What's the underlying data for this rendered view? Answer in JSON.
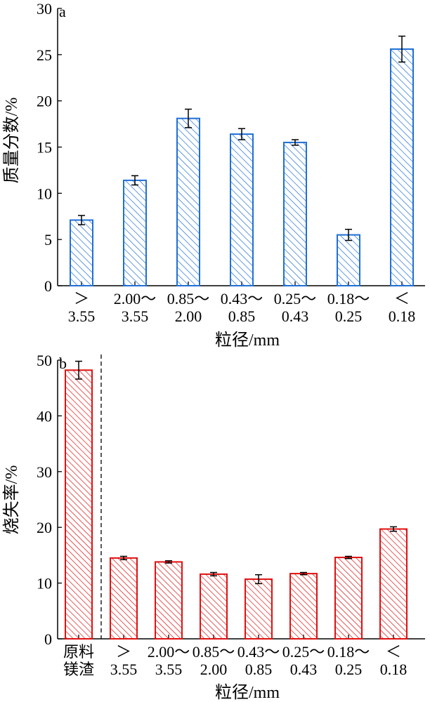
{
  "chart_data": [
    {
      "type": "bar",
      "panel_label": "a",
      "ylabel": "质量分数/%",
      "xlabel": "粒径/mm",
      "ylim": [
        0,
        30
      ],
      "yticks": [
        "0",
        "5",
        "10",
        "15",
        "20",
        "25",
        "30"
      ],
      "categories": [
        [
          "＞",
          "3.55"
        ],
        [
          "2.00～",
          "3.55"
        ],
        [
          "0.85～",
          "2.00"
        ],
        [
          "0.43～",
          "0.85"
        ],
        [
          "0.25～",
          "0.43"
        ],
        [
          "0.18～",
          "0.25"
        ],
        [
          "＜",
          "0.18"
        ]
      ],
      "values": [
        7.1,
        11.4,
        18.1,
        16.4,
        15.5,
        5.5,
        25.6
      ],
      "errors": [
        0.5,
        0.5,
        1.0,
        0.6,
        0.3,
        0.6,
        1.4
      ],
      "color": "#1f6fd6",
      "fill": "hatched"
    },
    {
      "type": "bar",
      "panel_label": "b",
      "ylabel": "烧失率/%",
      "xlabel": "粒径/mm",
      "ylim": [
        0,
        50
      ],
      "yticks": [
        "0",
        "10",
        "20",
        "30",
        "40",
        "50"
      ],
      "categories": [
        [
          "原料",
          "镁渣"
        ],
        [
          "＞",
          "3.55"
        ],
        [
          "2.00～",
          "3.55"
        ],
        [
          "0.85～",
          "2.00"
        ],
        [
          "0.43～",
          "0.85"
        ],
        [
          "0.25～",
          "0.43"
        ],
        [
          "0.18～",
          "0.25"
        ],
        [
          "＜",
          "0.18"
        ]
      ],
      "values": [
        48.2,
        14.5,
        13.8,
        11.6,
        10.7,
        11.7,
        14.6,
        19.7
      ],
      "errors": [
        1.6,
        0.3,
        0.2,
        0.3,
        0.8,
        0.2,
        0.2,
        0.4
      ],
      "color": "#e01010",
      "fill": "hatched",
      "separator_after_first": true
    }
  ]
}
